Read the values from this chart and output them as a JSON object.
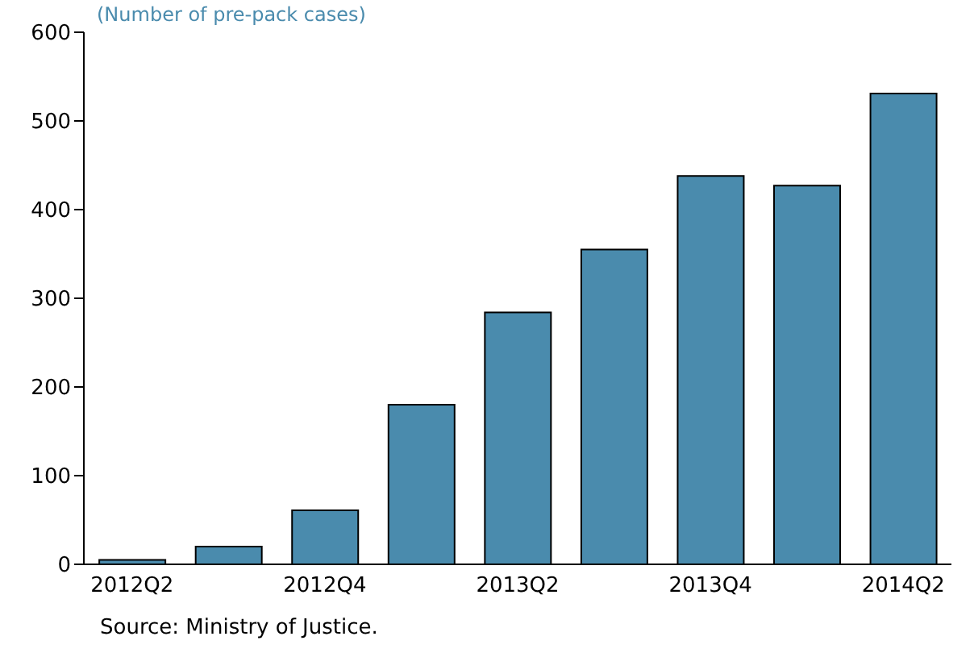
{
  "chart_data": {
    "type": "bar",
    "subtitle": "(Number of pre-pack cases)",
    "categories": [
      "2012Q2",
      null,
      "2012Q4",
      null,
      "2013Q2",
      null,
      "2013Q4",
      null,
      "2014Q2"
    ],
    "values": [
      5,
      20,
      61,
      180,
      284,
      355,
      438,
      427,
      531
    ],
    "color": "#4a8bad",
    "ylim": [
      0,
      600
    ],
    "yticks": [
      0,
      100,
      200,
      300,
      400,
      500,
      600
    ],
    "grid": false,
    "annotations": [
      "Source: Ministry of Justice."
    ]
  }
}
